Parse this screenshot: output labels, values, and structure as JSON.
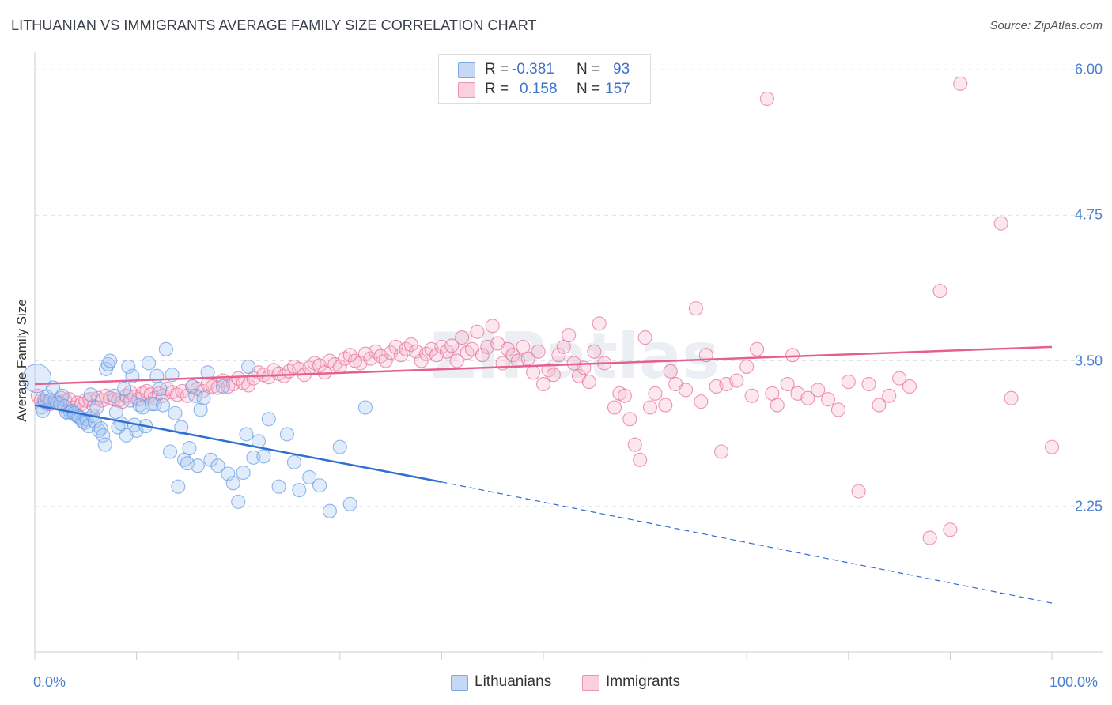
{
  "header": {
    "title": "LITHUANIAN VS IMMIGRANTS AVERAGE FAMILY SIZE CORRELATION CHART",
    "source": "Source: ZipAtlas.com"
  },
  "watermark": "ZIPatlas",
  "stats": [
    {
      "r_label": "R =",
      "r_value": "-0.381",
      "n_label": "N =",
      "n_value": "93",
      "color": "#aac8f0"
    },
    {
      "r_label": "R =",
      "r_value": "0.158",
      "n_label": "N =",
      "n_value": "157",
      "color": "#f7b9cd"
    }
  ],
  "legend": [
    {
      "label": "Lithuanians",
      "color": "#aac8f0"
    },
    {
      "label": "Immigrants",
      "color": "#f7b9cd"
    }
  ],
  "chart_data": {
    "type": "scatter",
    "title": "LITHUANIAN VS IMMIGRANTS AVERAGE FAMILY SIZE CORRELATION CHART",
    "xlabel": "",
    "ylabel": "Average Family Size",
    "xlim": [
      0,
      100
    ],
    "ylim": [
      1.0,
      6.15
    ],
    "x_tick_labels": [
      "0.0%",
      "100.0%"
    ],
    "y_ticks": [
      2.25,
      3.5,
      4.75,
      6.0
    ],
    "y_tick_labels": [
      "2.25",
      "3.50",
      "4.75",
      "6.00"
    ],
    "grid": true,
    "legend_position": "bottom-center",
    "series": [
      {
        "name": "Lithuanians",
        "color": "#6b9ee6",
        "fill": "#aac8f0",
        "trend": {
          "x": [
            0,
            40
          ],
          "y": [
            3.12,
            2.46
          ],
          "dashed_to": [
            100,
            1.42
          ]
        },
        "points": [
          [
            0.2,
            3.35
          ],
          [
            0.7,
            3.1
          ],
          [
            0.8,
            3.07
          ],
          [
            1.0,
            3.15
          ],
          [
            1.2,
            3.19
          ],
          [
            1.5,
            3.16
          ],
          [
            1.8,
            3.27
          ],
          [
            2.0,
            3.16
          ],
          [
            2.2,
            3.14
          ],
          [
            2.5,
            3.13
          ],
          [
            2.7,
            3.2
          ],
          [
            2.9,
            3.11
          ],
          [
            3.1,
            3.06
          ],
          [
            3.3,
            3.05
          ],
          [
            3.5,
            3.06
          ],
          [
            3.7,
            3.07
          ],
          [
            3.9,
            3.05
          ],
          [
            4.1,
            3.03
          ],
          [
            4.3,
            3.02
          ],
          [
            4.5,
            3.01
          ],
          [
            4.7,
            2.98
          ],
          [
            4.9,
            2.97
          ],
          [
            5.1,
            3.0
          ],
          [
            5.3,
            2.94
          ],
          [
            5.5,
            3.21
          ],
          [
            5.7,
            3.03
          ],
          [
            5.9,
            2.98
          ],
          [
            6.1,
            3.1
          ],
          [
            6.3,
            2.9
          ],
          [
            6.5,
            2.92
          ],
          [
            6.7,
            2.86
          ],
          [
            6.9,
            2.78
          ],
          [
            7.0,
            3.43
          ],
          [
            7.2,
            3.47
          ],
          [
            7.4,
            3.5
          ],
          [
            7.8,
            3.2
          ],
          [
            8.0,
            3.06
          ],
          [
            8.2,
            2.93
          ],
          [
            8.5,
            2.96
          ],
          [
            8.8,
            3.26
          ],
          [
            9.0,
            2.86
          ],
          [
            9.2,
            3.45
          ],
          [
            9.4,
            3.16
          ],
          [
            9.6,
            3.37
          ],
          [
            9.8,
            2.95
          ],
          [
            10.0,
            2.9
          ],
          [
            10.3,
            3.12
          ],
          [
            10.6,
            3.1
          ],
          [
            10.9,
            2.94
          ],
          [
            11.2,
            3.48
          ],
          [
            11.5,
            3.13
          ],
          [
            11.8,
            3.13
          ],
          [
            12.0,
            3.37
          ],
          [
            12.3,
            3.26
          ],
          [
            12.6,
            3.12
          ],
          [
            12.9,
            3.6
          ],
          [
            13.3,
            2.72
          ],
          [
            13.5,
            3.38
          ],
          [
            13.8,
            3.05
          ],
          [
            14.1,
            2.42
          ],
          [
            14.4,
            2.93
          ],
          [
            14.7,
            2.65
          ],
          [
            15.0,
            2.62
          ],
          [
            15.2,
            2.75
          ],
          [
            15.5,
            3.28
          ],
          [
            15.8,
            3.2
          ],
          [
            16.0,
            2.6
          ],
          [
            16.3,
            3.08
          ],
          [
            16.6,
            3.18
          ],
          [
            17.0,
            3.4
          ],
          [
            17.3,
            2.65
          ],
          [
            18.0,
            2.6
          ],
          [
            18.5,
            3.28
          ],
          [
            19.0,
            2.53
          ],
          [
            19.5,
            2.45
          ],
          [
            20.0,
            2.29
          ],
          [
            20.5,
            2.54
          ],
          [
            20.8,
            2.87
          ],
          [
            21.0,
            3.45
          ],
          [
            21.5,
            2.67
          ],
          [
            22.0,
            2.81
          ],
          [
            22.5,
            2.68
          ],
          [
            23.0,
            3.0
          ],
          [
            24.0,
            2.42
          ],
          [
            24.8,
            2.87
          ],
          [
            25.5,
            2.63
          ],
          [
            26.0,
            2.39
          ],
          [
            27.0,
            2.5
          ],
          [
            28.0,
            2.43
          ],
          [
            29.0,
            2.21
          ],
          [
            30.0,
            2.76
          ],
          [
            31.0,
            2.27
          ],
          [
            32.5,
            3.1
          ]
        ]
      },
      {
        "name": "Immigrants",
        "color": "#e8739b",
        "fill": "#f7b9cd",
        "trend": {
          "x": [
            0,
            100
          ],
          "y": [
            3.3,
            3.62
          ]
        },
        "points": [
          [
            0.3,
            3.2
          ],
          [
            0.6,
            3.16
          ],
          [
            0.9,
            3.16
          ],
          [
            1.2,
            3.13
          ],
          [
            1.5,
            3.13
          ],
          [
            1.9,
            3.14
          ],
          [
            2.2,
            3.14
          ],
          [
            2.6,
            3.18
          ],
          [
            3.0,
            3.16
          ],
          [
            3.4,
            3.17
          ],
          [
            3.8,
            3.1
          ],
          [
            4.2,
            3.14
          ],
          [
            4.6,
            3.13
          ],
          [
            5.0,
            3.16
          ],
          [
            5.4,
            3.17
          ],
          [
            5.8,
            3.11
          ],
          [
            6.2,
            3.18
          ],
          [
            6.6,
            3.16
          ],
          [
            7.0,
            3.2
          ],
          [
            7.4,
            3.18
          ],
          [
            7.8,
            3.17
          ],
          [
            8.2,
            3.16
          ],
          [
            8.6,
            3.15
          ],
          [
            9.0,
            3.2
          ],
          [
            9.4,
            3.23
          ],
          [
            9.8,
            3.19
          ],
          [
            10.2,
            3.17
          ],
          [
            10.6,
            3.22
          ],
          [
            11.0,
            3.24
          ],
          [
            11.4,
            3.21
          ],
          [
            11.8,
            3.18
          ],
          [
            12.2,
            3.22
          ],
          [
            12.6,
            3.2
          ],
          [
            13.0,
            3.26
          ],
          [
            13.5,
            3.23
          ],
          [
            14.0,
            3.21
          ],
          [
            14.5,
            3.24
          ],
          [
            15.0,
            3.2
          ],
          [
            15.5,
            3.28
          ],
          [
            16.0,
            3.26
          ],
          [
            16.5,
            3.24
          ],
          [
            17.0,
            3.3
          ],
          [
            17.5,
            3.28
          ],
          [
            18.0,
            3.27
          ],
          [
            18.5,
            3.33
          ],
          [
            19.0,
            3.28
          ],
          [
            19.5,
            3.3
          ],
          [
            20.0,
            3.35
          ],
          [
            20.5,
            3.31
          ],
          [
            21.0,
            3.29
          ],
          [
            21.5,
            3.35
          ],
          [
            22.0,
            3.4
          ],
          [
            22.5,
            3.38
          ],
          [
            23.0,
            3.36
          ],
          [
            23.5,
            3.42
          ],
          [
            24.0,
            3.39
          ],
          [
            24.5,
            3.37
          ],
          [
            25.0,
            3.41
          ],
          [
            25.5,
            3.45
          ],
          [
            26.0,
            3.43
          ],
          [
            26.5,
            3.38
          ],
          [
            27.0,
            3.44
          ],
          [
            27.5,
            3.48
          ],
          [
            28.0,
            3.46
          ],
          [
            28.5,
            3.4
          ],
          [
            29.0,
            3.5
          ],
          [
            29.5,
            3.47
          ],
          [
            30.0,
            3.45
          ],
          [
            30.5,
            3.52
          ],
          [
            31.0,
            3.55
          ],
          [
            31.5,
            3.5
          ],
          [
            32.0,
            3.48
          ],
          [
            32.5,
            3.56
          ],
          [
            33.0,
            3.52
          ],
          [
            33.5,
            3.58
          ],
          [
            34.0,
            3.54
          ],
          [
            34.5,
            3.5
          ],
          [
            35.0,
            3.57
          ],
          [
            35.5,
            3.62
          ],
          [
            36.0,
            3.55
          ],
          [
            36.5,
            3.6
          ],
          [
            37.0,
            3.64
          ],
          [
            37.5,
            3.58
          ],
          [
            38.0,
            3.5
          ],
          [
            38.5,
            3.56
          ],
          [
            39.0,
            3.6
          ],
          [
            39.5,
            3.55
          ],
          [
            40.0,
            3.62
          ],
          [
            40.5,
            3.58
          ],
          [
            41.0,
            3.63
          ],
          [
            41.5,
            3.5
          ],
          [
            42.0,
            3.7
          ],
          [
            42.5,
            3.57
          ],
          [
            43.0,
            3.6
          ],
          [
            43.5,
            3.75
          ],
          [
            44.0,
            3.55
          ],
          [
            44.5,
            3.62
          ],
          [
            45.0,
            3.8
          ],
          [
            45.5,
            3.65
          ],
          [
            46.0,
            3.48
          ],
          [
            46.5,
            3.6
          ],
          [
            47.0,
            3.55
          ],
          [
            47.5,
            3.5
          ],
          [
            48.0,
            3.62
          ],
          [
            48.5,
            3.52
          ],
          [
            49.0,
            3.4
          ],
          [
            49.5,
            3.58
          ],
          [
            50.0,
            3.3
          ],
          [
            50.5,
            3.42
          ],
          [
            51.0,
            3.38
          ],
          [
            51.5,
            3.55
          ],
          [
            52.0,
            3.62
          ],
          [
            52.5,
            3.72
          ],
          [
            53.0,
            3.48
          ],
          [
            53.5,
            3.37
          ],
          [
            54.0,
            3.44
          ],
          [
            54.5,
            3.32
          ],
          [
            55.0,
            3.58
          ],
          [
            55.5,
            3.82
          ],
          [
            56.0,
            3.48
          ],
          [
            57.0,
            3.1
          ],
          [
            57.5,
            3.22
          ],
          [
            58.0,
            3.2
          ],
          [
            58.5,
            3.0
          ],
          [
            59.0,
            2.78
          ],
          [
            59.5,
            2.65
          ],
          [
            60.0,
            3.7
          ],
          [
            60.5,
            3.1
          ],
          [
            61.0,
            3.22
          ],
          [
            62.0,
            3.12
          ],
          [
            62.5,
            3.41
          ],
          [
            63.0,
            3.3
          ],
          [
            64.0,
            3.25
          ],
          [
            65.0,
            3.95
          ],
          [
            65.5,
            3.15
          ],
          [
            66.0,
            3.55
          ],
          [
            67.0,
            3.28
          ],
          [
            67.5,
            2.72
          ],
          [
            68.0,
            3.3
          ],
          [
            69.0,
            3.33
          ],
          [
            70.0,
            3.45
          ],
          [
            70.5,
            3.2
          ],
          [
            71.0,
            3.6
          ],
          [
            72.0,
            5.75
          ],
          [
            72.5,
            3.22
          ],
          [
            73.0,
            3.12
          ],
          [
            74.0,
            3.3
          ],
          [
            74.5,
            3.55
          ],
          [
            75.0,
            3.22
          ],
          [
            76.0,
            3.18
          ],
          [
            77.0,
            3.25
          ],
          [
            78.0,
            3.17
          ],
          [
            79.0,
            3.08
          ],
          [
            80.0,
            3.32
          ],
          [
            81.0,
            2.38
          ],
          [
            82.0,
            3.3
          ],
          [
            83.0,
            3.12
          ],
          [
            84.0,
            3.2
          ],
          [
            85.0,
            3.35
          ],
          [
            86.0,
            3.28
          ],
          [
            88.0,
            1.98
          ],
          [
            89.0,
            4.1
          ],
          [
            90.0,
            2.05
          ],
          [
            91.0,
            5.88
          ],
          [
            95.0,
            4.68
          ],
          [
            96.0,
            3.18
          ],
          [
            100.0,
            2.76
          ]
        ]
      }
    ]
  }
}
